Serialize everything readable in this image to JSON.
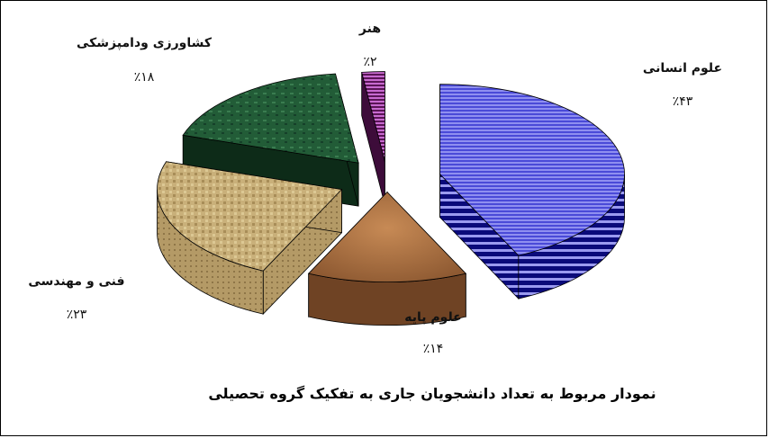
{
  "chart_data": {
    "type": "pie",
    "title": "نمودار مربوط به تعداد دانشجویان جاری به تفکیک گروه تحصیلی",
    "slices": [
      {
        "label": "علوم انسانی",
        "value": 43,
        "value_text": "٪۴۳",
        "color": "#6f6fe0",
        "side_color": "#0a0a7a"
      },
      {
        "label": "علوم پایه",
        "value": 14,
        "value_text": "٪۱۴",
        "color": "#b7794a",
        "side_color": "#7a4a24"
      },
      {
        "label": "فنی و مهندسی",
        "value": 23,
        "value_text": "٪۲۳",
        "color": "#c8b27f",
        "side_color": "#8a7548"
      },
      {
        "label": "کشاورزی ودامپزشکی",
        "value": 18,
        "value_text": "٪۱۸",
        "color": "#1f5a34",
        "side_color": "#0b2314"
      },
      {
        "label": "هنر",
        "value": 2,
        "value_text": "٪۲",
        "color": "#8a2f86",
        "side_color": "#3d0c3a"
      }
    ],
    "exploded": true,
    "style": "3d"
  }
}
